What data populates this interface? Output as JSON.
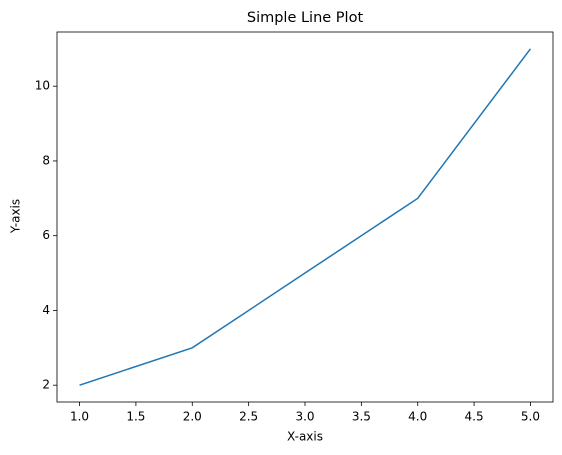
{
  "chart_data": {
    "type": "line",
    "title": "Simple Line Plot",
    "x_label": "X-axis",
    "y_label": "Y-axis",
    "x": [
      1,
      2,
      3,
      4,
      5
    ],
    "series": [
      {
        "color": "#1f77b4",
        "values": [
          2,
          3,
          5,
          7,
          11
        ]
      }
    ],
    "xlim": [
      0.8,
      5.2
    ],
    "xticks": [
      {
        "value": 1,
        "label": "1.0"
      },
      1.5,
      {
        "value": 2,
        "label": "2.0"
      },
      2.5,
      {
        "value": 3,
        "label": "3.0"
      },
      3.5,
      {
        "value": 4,
        "label": "4.0"
      },
      4.5,
      {
        "value": 5,
        "label": "5.0"
      }
    ],
    "ylim": [
      1.55,
      11.45
    ],
    "yticks": [
      2,
      4,
      6,
      8,
      10
    ],
    "grid": false
  }
}
